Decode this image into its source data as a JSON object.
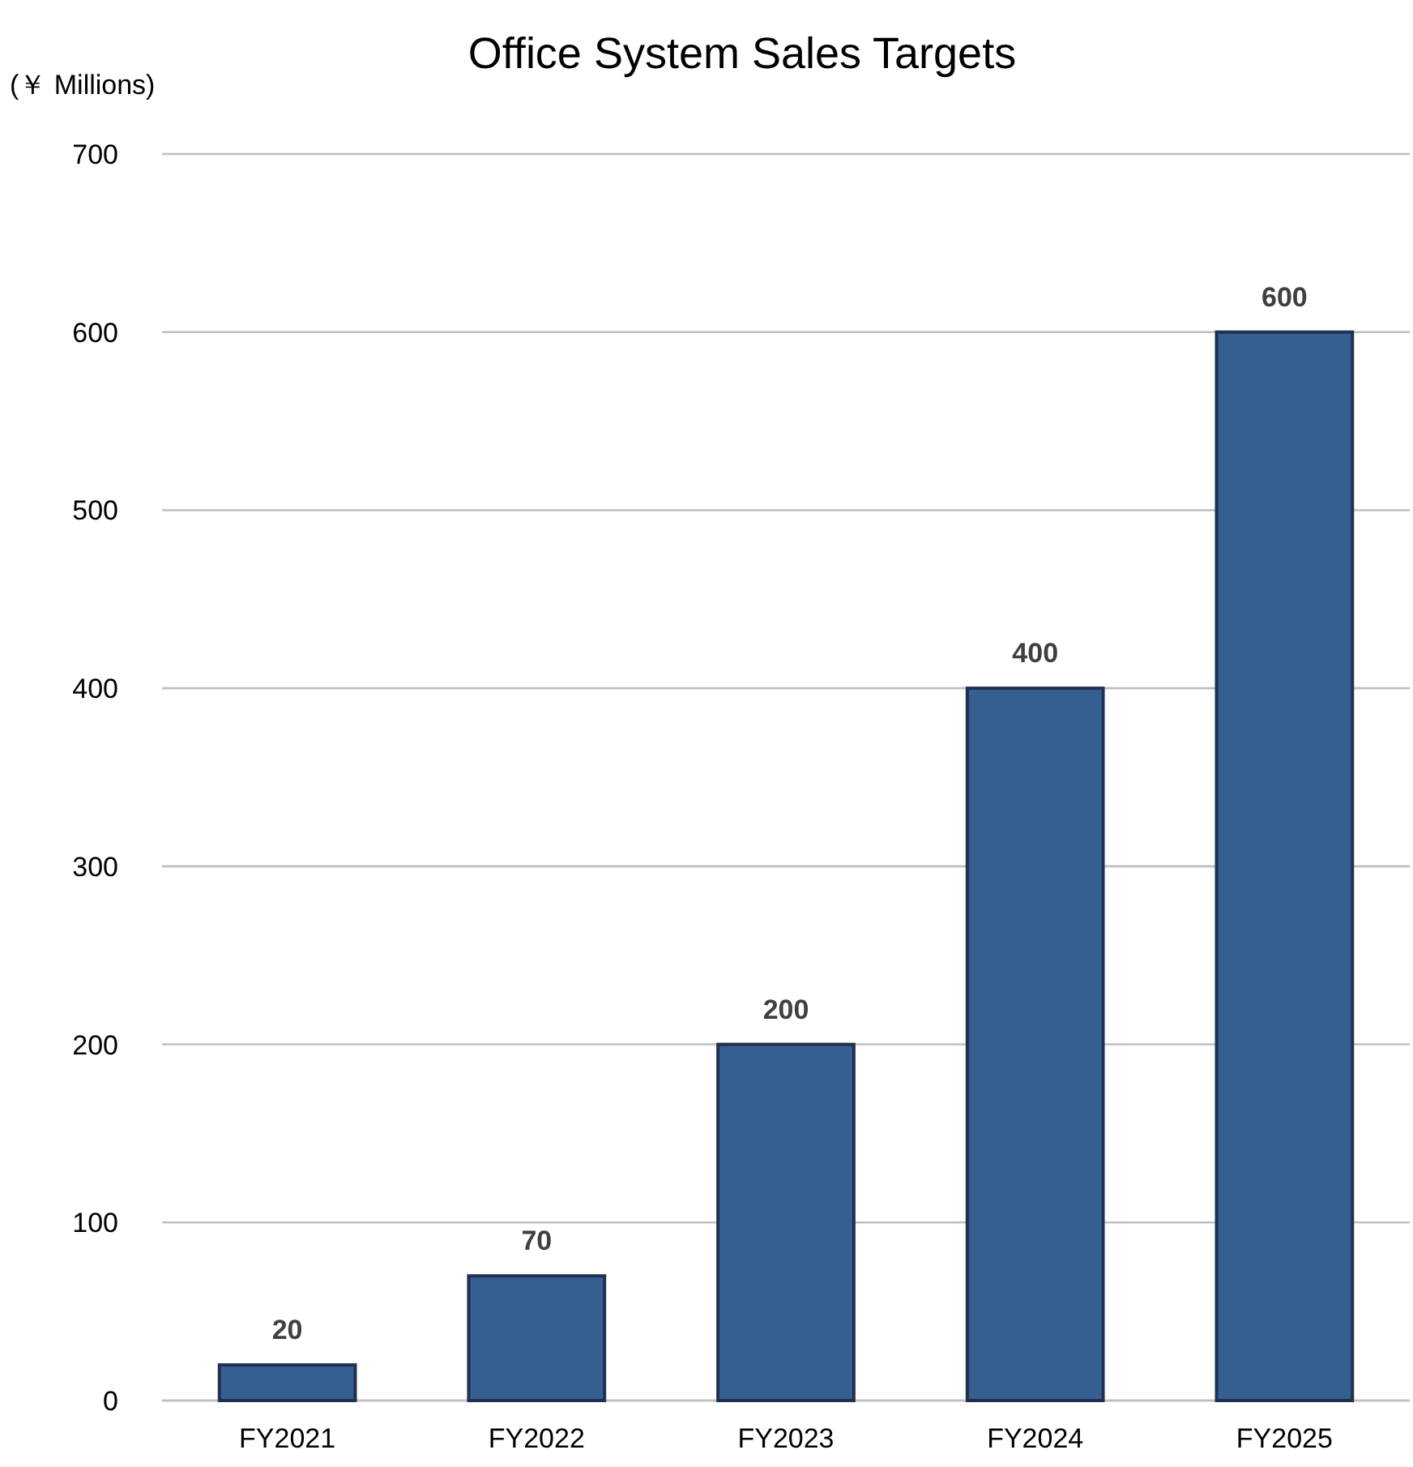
{
  "chart_data": {
    "type": "bar",
    "title": "Office System Sales Targets",
    "ylabel": "(￥ Millions)",
    "categories": [
      "FY2021",
      "FY2022",
      "FY2023",
      "FY2024",
      "FY2025"
    ],
    "values": [
      20,
      70,
      200,
      400,
      600
    ],
    "color": "#365f91",
    "ylim": [
      0,
      700
    ],
    "yticks": [
      0,
      100,
      200,
      300,
      400,
      500,
      600,
      700
    ],
    "grid": "y",
    "data_labels": true
  }
}
